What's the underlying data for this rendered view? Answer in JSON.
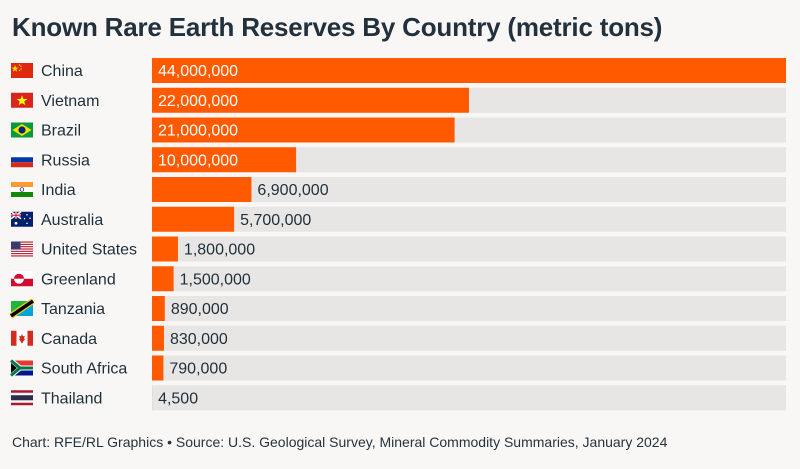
{
  "title": "Known Rare Earth Reserves By Country (metric tons)",
  "footer": "Chart: RFE/RL Graphics • Source: U.S. Geological Survey, Mineral Commodity Summaries, January 2024",
  "colors": {
    "bar": "#ff5a00",
    "track": "#e7e6e4",
    "background": "#f8f7f5"
  },
  "chart_data": {
    "type": "bar",
    "orientation": "horizontal",
    "title": "Known Rare Earth Reserves By Country (metric tons)",
    "categories": [
      "China",
      "Vietnam",
      "Brazil",
      "Russia",
      "India",
      "Australia",
      "United States",
      "Greenland",
      "Tanzania",
      "Canada",
      "South Africa",
      "Thailand"
    ],
    "values": [
      44000000,
      22000000,
      21000000,
      10000000,
      6900000,
      5700000,
      1800000,
      1500000,
      890000,
      830000,
      790000,
      4500
    ],
    "value_labels": [
      "44,000,000",
      "22,000,000",
      "21,000,000",
      "10,000,000",
      "6,900,000",
      "5,700,000",
      "1,800,000",
      "1,500,000",
      "890,000",
      "830,000",
      "790,000",
      "4,500"
    ],
    "flags": [
      "china-flag-icon",
      "vietnam-flag-icon",
      "brazil-flag-icon",
      "russia-flag-icon",
      "india-flag-icon",
      "australia-flag-icon",
      "united-states-flag-icon",
      "greenland-flag-icon",
      "tanzania-flag-icon",
      "canada-flag-icon",
      "south-africa-flag-icon",
      "thailand-flag-icon"
    ],
    "xlim": [
      0,
      44000000
    ],
    "grid": false,
    "legend": "none"
  }
}
